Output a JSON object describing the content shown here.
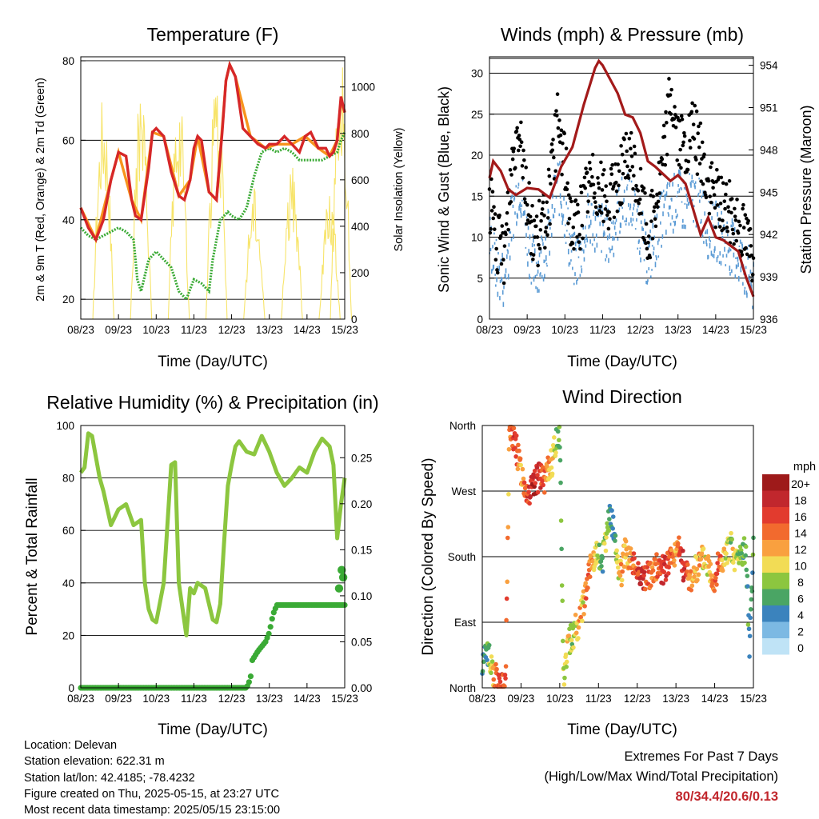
{
  "colors": {
    "temp_2m": "#d62728",
    "temp_9m": "#f7941d",
    "dewpoint": "#3aaa35",
    "solar": "#f7e46a",
    "wind_sonic": "#5b9bd5",
    "gust": "#000000",
    "pressure": "#a31a1a",
    "rh": "#8cc63f",
    "rain": "#3aaa35",
    "extremes": "#c1272d"
  },
  "time_ticks": [
    "08/23",
    "09/23",
    "10/23",
    "11/23",
    "12/23",
    "13/23",
    "14/23",
    "15/23"
  ],
  "panels": {
    "temperature": {
      "title": "Temperature (F)",
      "xlabel": "Time (Day/UTC)",
      "ylabel_left": "2m & 9m T (Red, Orange) & 2m Td (Green)",
      "ylabel_right": "Solar Insolation (Yellow)",
      "left_ticks": [
        "20",
        "40",
        "60",
        "80"
      ],
      "right_ticks": [
        "0",
        "200",
        "400",
        "600",
        "800",
        "1000"
      ]
    },
    "winds": {
      "title": "Winds (mph) & Pressure (mb)",
      "xlabel": "Time (Day/UTC)",
      "ylabel_left": "Sonic Wind & Gust (Blue, Black)",
      "ylabel_right": "Station Pressure (Maroon)",
      "left_ticks": [
        "0",
        "5",
        "10",
        "15",
        "20",
        "25",
        "30"
      ],
      "right_ticks": [
        "936",
        "939",
        "942",
        "945",
        "948",
        "951",
        "954"
      ]
    },
    "humidity": {
      "title": "Relative Humidity (%) & Precipitation (in)",
      "xlabel": "Time (Day/UTC)",
      "ylabel_left": "Percent & Total Rainfall",
      "left_ticks": [
        "0",
        "20",
        "40",
        "60",
        "80",
        "100"
      ],
      "right_ticks": [
        "0.00",
        "0.05",
        "0.10",
        "0.15",
        "0.20",
        "0.25"
      ]
    },
    "direction": {
      "title": "Wind Direction",
      "xlabel": "Time (Day/UTC)",
      "ylabel_left": "Direction (Colored By Speed)",
      "left_ticks": [
        "North",
        "East",
        "South",
        "West",
        "North"
      ],
      "legend_title": "mph",
      "legend_labels": [
        "20+",
        "18",
        "16",
        "14",
        "12",
        "10",
        "8",
        "6",
        "4",
        "2",
        "0"
      ],
      "legend_colors": [
        "#9e1a1a",
        "#c1272d",
        "#e23b2e",
        "#f26a2e",
        "#f9a03f",
        "#f2dc55",
        "#8cc63f",
        "#4aa564",
        "#3b83bd",
        "#7cb9e3",
        "#bfe3f6"
      ]
    }
  },
  "chart_data": [
    {
      "type": "line",
      "title": "Temperature (F)",
      "xlabel": "Time (Day/UTC)",
      "ylabel": "2m & 9m T (Red, Orange) & 2m Td (Green)",
      "y2label": "Solar Insolation (Yellow)",
      "x_range_days": [
        8,
        15
      ],
      "ylim": [
        15,
        81
      ],
      "y2lim": [
        0,
        1130
      ],
      "series": [
        {
          "name": "2m T",
          "axis": "left",
          "x": [
            8.0,
            8.2,
            8.4,
            8.6,
            8.8,
            9.0,
            9.2,
            9.35,
            9.45,
            9.6,
            9.8,
            9.9,
            10.0,
            10.2,
            10.4,
            10.6,
            10.75,
            10.9,
            11.0,
            11.1,
            11.2,
            11.4,
            11.6,
            11.75,
            11.85,
            11.95,
            12.1,
            12.3,
            12.5,
            12.7,
            12.9,
            13.0,
            13.2,
            13.4,
            13.6,
            13.8,
            13.95,
            14.1,
            14.3,
            14.5,
            14.6,
            14.7,
            14.8,
            14.9,
            15.0
          ],
          "y": [
            43,
            38,
            35,
            40,
            50,
            57,
            56,
            45,
            41,
            40,
            53,
            62,
            63,
            61,
            52,
            46,
            45,
            50,
            58,
            61,
            60,
            47,
            45,
            62,
            75,
            79,
            76,
            63,
            61,
            59,
            58,
            59,
            59,
            61,
            59,
            57,
            61,
            62,
            58,
            58,
            56,
            57,
            60,
            71,
            67
          ]
        },
        {
          "name": "9m T",
          "axis": "left",
          "x": [
            8.0,
            8.4,
            8.8,
            9.0,
            9.35,
            9.6,
            9.9,
            10.2,
            10.6,
            10.9,
            11.1,
            11.4,
            11.6,
            11.85,
            11.95,
            12.1,
            12.5,
            12.9,
            13.2,
            13.6,
            13.95,
            14.3,
            14.6,
            14.8,
            14.9,
            15.0
          ],
          "y": [
            43,
            35,
            50,
            57,
            45,
            40,
            62,
            61,
            46,
            50,
            61,
            47,
            45,
            75,
            79,
            76,
            61,
            58,
            59,
            59,
            61,
            58,
            56,
            60,
            70,
            67
          ]
        },
        {
          "name": "2m Td",
          "axis": "left",
          "x": [
            8.0,
            8.2,
            8.4,
            8.6,
            8.8,
            9.0,
            9.2,
            9.4,
            9.5,
            9.6,
            9.8,
            10.0,
            10.2,
            10.4,
            10.6,
            10.8,
            11.0,
            11.2,
            11.4,
            11.5,
            11.7,
            11.9,
            12.0,
            12.2,
            12.4,
            12.6,
            12.8,
            13.0,
            13.2,
            13.4,
            13.6,
            13.8,
            14.0,
            14.2,
            14.4,
            14.6,
            14.8,
            14.9,
            15.0
          ],
          "y": [
            38,
            36,
            35,
            36,
            37,
            38,
            37,
            35,
            25,
            22,
            30,
            32,
            30,
            28,
            22,
            20,
            25,
            24,
            22,
            30,
            40,
            42,
            41,
            40,
            43,
            51,
            57,
            58,
            57,
            58,
            57,
            55,
            55,
            55,
            55,
            56,
            57,
            60,
            62
          ]
        },
        {
          "name": "Solar Insolation",
          "axis": "right",
          "type": "pulses",
          "x_peaks": [
            8.6,
            9.6,
            10.6,
            11.6,
            12.6,
            13.6,
            14.6,
            14.9
          ],
          "y_peaks": [
            990,
            1000,
            990,
            1070,
            580,
            660,
            580,
            1120
          ]
        }
      ]
    },
    {
      "type": "scatter",
      "title": "Winds (mph) & Pressure (mb)",
      "xlabel": "Time (Day/UTC)",
      "ylabel": "Sonic Wind & Gust (Blue, Black)",
      "y2label": "Station Pressure (Maroon)",
      "x_range_days": [
        8,
        15
      ],
      "ylim": [
        0,
        32
      ],
      "y2lim": [
        936,
        954.6
      ],
      "series": [
        {
          "name": "Sonic Wind",
          "axis": "left",
          "x": [
            8.0,
            8.2,
            8.4,
            8.6,
            8.8,
            9.0,
            9.2,
            9.4,
            9.6,
            9.8,
            10.0,
            10.2,
            10.4,
            10.6,
            10.8,
            11.0,
            11.2,
            11.4,
            11.6,
            11.8,
            12.0,
            12.2,
            12.4,
            12.6,
            12.8,
            13.0,
            13.2,
            13.4,
            13.6,
            13.8,
            14.0,
            14.2,
            14.4,
            14.6,
            14.8,
            15.0
          ],
          "y": [
            10,
            6,
            5,
            13,
            17,
            10,
            6,
            8,
            11,
            17,
            13,
            7,
            8,
            12,
            12,
            11,
            10,
            13,
            15,
            14,
            11,
            7,
            10,
            13,
            14,
            15,
            14,
            15,
            14,
            11,
            11,
            10,
            9,
            8,
            6,
            5
          ]
        },
        {
          "name": "Gust",
          "axis": "left",
          "x": [
            8.0,
            8.2,
            8.4,
            8.6,
            8.8,
            9.0,
            9.2,
            9.4,
            9.6,
            9.8,
            10.0,
            10.2,
            10.4,
            10.6,
            10.8,
            11.0,
            11.2,
            11.4,
            11.6,
            11.8,
            12.0,
            12.2,
            12.4,
            12.6,
            12.8,
            13.0,
            13.2,
            13.4,
            13.6,
            13.8,
            14.0,
            14.2,
            14.4,
            14.6,
            14.8,
            15.0
          ],
          "y": [
            15,
            9,
            8,
            19,
            25,
            14,
            10,
            11,
            15,
            24,
            19,
            11,
            12,
            16,
            17,
            15,
            14,
            17,
            19,
            19,
            15,
            10,
            14,
            19,
            28,
            22,
            20,
            23,
            20,
            16,
            15,
            14,
            13,
            12,
            10,
            8
          ]
        },
        {
          "name": "Station Pressure",
          "axis": "right",
          "type": "line",
          "x": [
            8.0,
            8.1,
            8.3,
            8.5,
            8.7,
            9.0,
            9.3,
            9.6,
            9.9,
            10.2,
            10.5,
            10.8,
            10.9,
            11.0,
            11.2,
            11.4,
            11.6,
            11.8,
            12.0,
            12.2,
            12.4,
            12.6,
            12.8,
            13.0,
            13.2,
            13.4,
            13.6,
            13.8,
            14.0,
            14.2,
            14.4,
            14.6,
            14.8,
            15.0
          ],
          "y": [
            946,
            947.2,
            946.5,
            945.2,
            944.8,
            945.3,
            945.2,
            944.6,
            946.8,
            948.2,
            951.2,
            953.8,
            954.3,
            954.0,
            953.0,
            952.0,
            950.5,
            950.3,
            949.2,
            947.2,
            946.8,
            946.3,
            945.8,
            946.2,
            945.6,
            943.8,
            942.0,
            943.2,
            941.8,
            941.6,
            941.2,
            940.8,
            939.0,
            937.6
          ]
        }
      ]
    },
    {
      "type": "line",
      "title": "Relative Humidity (%) & Precipitation (in)",
      "xlabel": "Time (Day/UTC)",
      "ylabel": "Percent & Total Rainfall",
      "x_range_days": [
        8,
        15
      ],
      "ylim": [
        0,
        100
      ],
      "y2lim": [
        0,
        0.285
      ],
      "series": [
        {
          "name": "Relative Humidity",
          "axis": "left",
          "x": [
            8.0,
            8.1,
            8.2,
            8.3,
            8.5,
            8.6,
            8.8,
            9.0,
            9.2,
            9.4,
            9.6,
            9.7,
            9.8,
            9.9,
            10.0,
            10.2,
            10.4,
            10.5,
            10.6,
            10.8,
            10.9,
            11.0,
            11.1,
            11.3,
            11.5,
            11.6,
            11.7,
            11.8,
            11.9,
            12.0,
            12.1,
            12.2,
            12.4,
            12.6,
            12.8,
            13.0,
            13.2,
            13.4,
            13.6,
            13.8,
            14.0,
            14.2,
            14.4,
            14.6,
            14.7,
            14.8,
            14.9,
            15.0
          ],
          "y": [
            82,
            84,
            97,
            96,
            80,
            75,
            62,
            68,
            70,
            62,
            64,
            40,
            30,
            26,
            25,
            40,
            85,
            86,
            40,
            20,
            38,
            36,
            40,
            38,
            26,
            25,
            32,
            55,
            77,
            85,
            92,
            94,
            90,
            89,
            96,
            90,
            82,
            77,
            80,
            84,
            82,
            90,
            95,
            92,
            85,
            57,
            70,
            80
          ]
        },
        {
          "name": "Total Rainfall",
          "axis": "right",
          "x": [
            8.0,
            12.4,
            12.5,
            12.55,
            12.7,
            12.9,
            13.0,
            13.1,
            13.2,
            15.0
          ],
          "y": [
            0,
            0,
            0.01,
            0.03,
            0.04,
            0.05,
            0.06,
            0.08,
            0.09,
            0.09
          ]
        },
        {
          "name": "Rainfall recent",
          "axis": "right",
          "type": "points",
          "x": [
            14.85,
            14.92,
            14.96
          ],
          "y": [
            0.108,
            0.128,
            0.12
          ]
        }
      ]
    },
    {
      "type": "scatter",
      "title": "Wind Direction",
      "xlabel": "Time (Day/UTC)",
      "ylabel": "Direction (Colored By Speed)",
      "x_range_days": [
        8,
        15
      ],
      "y_categories": [
        "North",
        "East",
        "South",
        "West",
        "North"
      ],
      "ylim": [
        0,
        360
      ],
      "color_scale": {
        "label": "mph",
        "min": 0,
        "max": 20
      },
      "points": {
        "x": [
          8.0,
          8.1,
          8.2,
          8.3,
          8.4,
          8.5,
          8.6,
          8.7,
          8.8,
          9.0,
          9.1,
          9.2,
          9.3,
          9.4,
          9.5,
          9.6,
          9.7,
          9.8,
          9.9,
          10.0,
          10.1,
          10.2,
          10.3,
          10.5,
          10.6,
          10.7,
          10.8,
          10.9,
          11.0,
          11.1,
          11.2,
          11.3,
          11.4,
          11.5,
          11.6,
          11.7,
          11.8,
          11.9,
          12.0,
          12.1,
          12.2,
          12.3,
          12.4,
          12.5,
          12.6,
          12.7,
          12.8,
          12.9,
          13.0,
          13.1,
          13.2,
          13.3,
          13.4,
          13.5,
          13.6,
          13.7,
          13.8,
          13.9,
          14.0,
          14.1,
          14.2,
          14.3,
          14.4,
          14.5,
          14.6,
          14.7,
          14.8,
          14.9,
          15.0
        ],
        "y": [
          20,
          60,
          40,
          20,
          10,
          5,
          1,
          355,
          345,
          300,
          280,
          270,
          275,
          285,
          290,
          280,
          300,
          310,
          340,
          355,
          10,
          60,
          70,
          90,
          110,
          140,
          170,
          180,
          180,
          175,
          200,
          240,
          210,
          170,
          160,
          190,
          180,
          170,
          165,
          160,
          150,
          155,
          160,
          170,
          165,
          160,
          175,
          180,
          185,
          190,
          165,
          155,
          150,
          160,
          170,
          180,
          175,
          160,
          150,
          170,
          175,
          180,
          200,
          175,
          180,
          185,
          190,
          60,
          200
        ],
        "speed": [
          6,
          5,
          8,
          12,
          14,
          16,
          14,
          12,
          16,
          12,
          14,
          16,
          18,
          18,
          16,
          14,
          12,
          10,
          8,
          6,
          8,
          10,
          8,
          12,
          10,
          14,
          14,
          10,
          8,
          6,
          10,
          6,
          4,
          10,
          12,
          10,
          12,
          14,
          16,
          18,
          16,
          14,
          12,
          14,
          16,
          18,
          16,
          14,
          12,
          16,
          18,
          14,
          12,
          10,
          12,
          10,
          10,
          12,
          14,
          16,
          12,
          10,
          8,
          10,
          8,
          6,
          8,
          4,
          6
        ]
      }
    }
  ],
  "info": {
    "location": "Location: Delevan",
    "elevation": "Station elevation: 622.31 m",
    "latlon": "Station lat/lon: 42.4185; -78.4232",
    "created": "Figure created on Thu, 2025-05-15, at 23:27 UTC",
    "timestamp": "Most recent data timestamp: 2025/05/15 23:15:00"
  },
  "extremes": {
    "line1": "Extremes For Past 7 Days",
    "line2": "(High/Low/Max Wind/Total Precipitation)",
    "values": "80/34.4/20.6/0.13"
  }
}
